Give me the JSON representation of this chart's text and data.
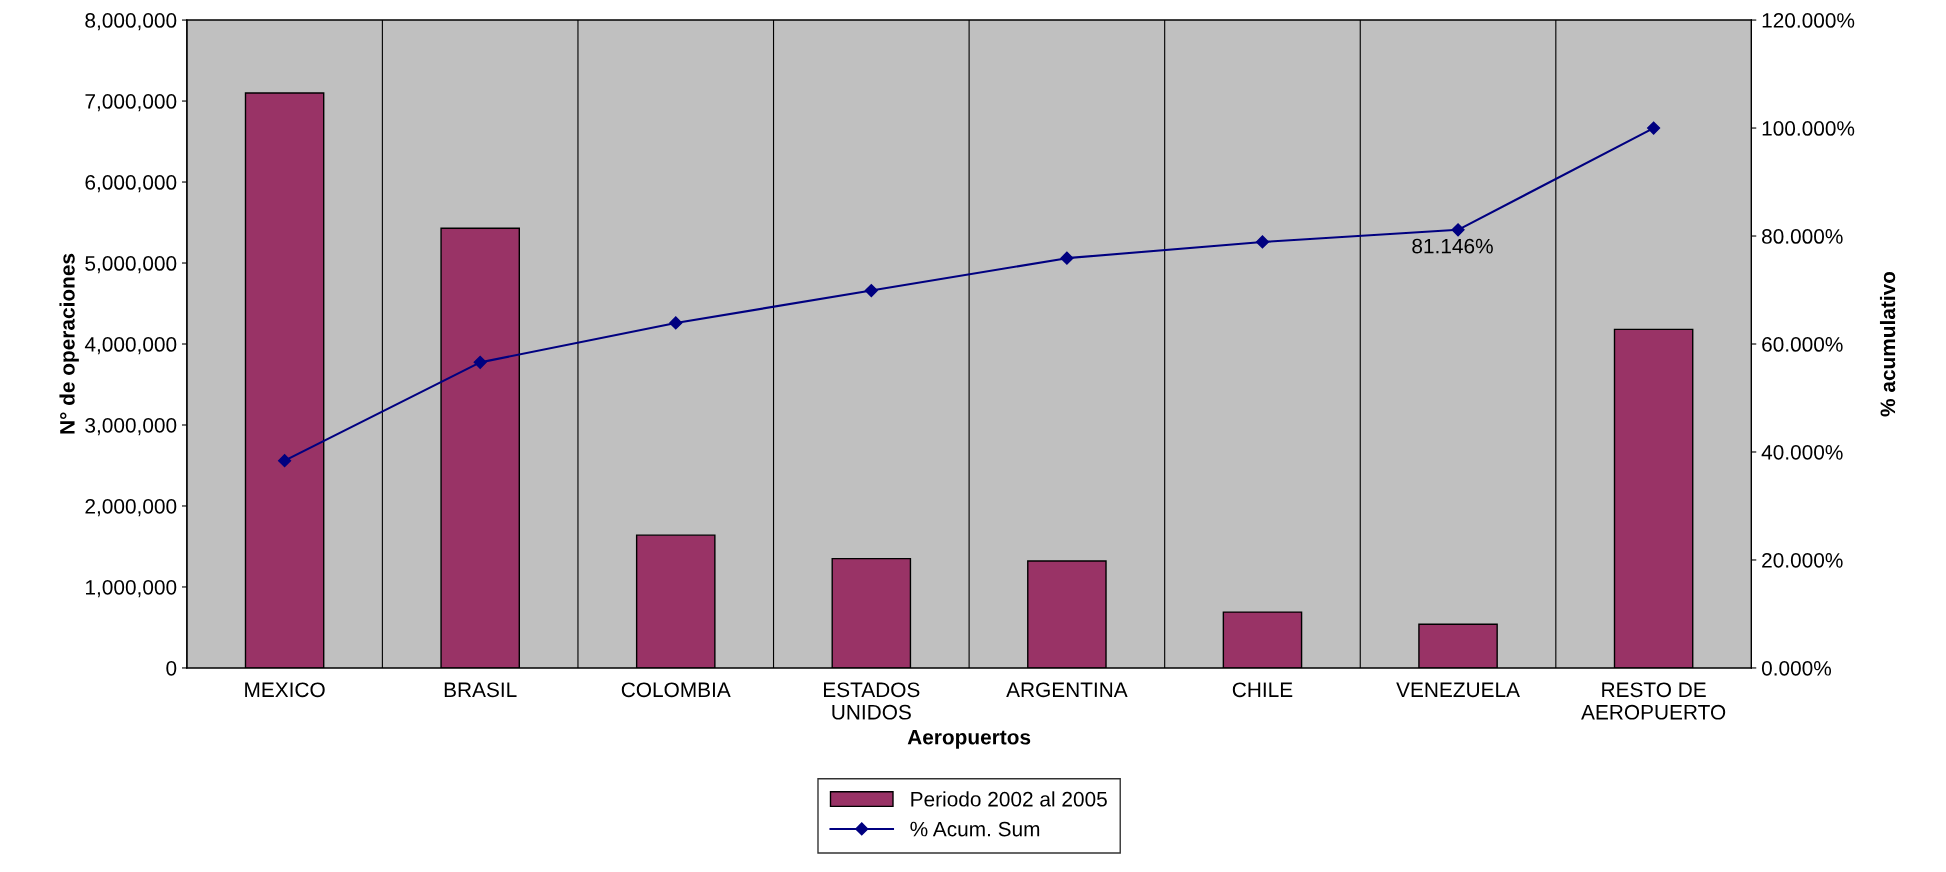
{
  "chart_data": {
    "type": "bar",
    "xlabel": "Aeropuertos",
    "ylabel": "N° de operaciones",
    "y2label": "% acumulativo",
    "categories": [
      "MEXICO",
      "BRASIL",
      "COLOMBIA",
      "ESTADOS\nUNIDOS",
      "ARGENTINA",
      "CHILE",
      "VENEZUELA",
      "RESTO DE\nAEROPUERTO"
    ],
    "series": [
      {
        "name": "Periodo 2002 al 2005",
        "color": "#993366",
        "values": [
          7100000,
          5430000,
          1640000,
          1350000,
          1320000,
          690000,
          540000,
          4180000
        ]
      },
      {
        "name": "% Acum. Sum",
        "type": "line",
        "axis": "y2",
        "color": "#000080",
        "marker": "diamond",
        "line_style": "solid",
        "values": [
          38.4,
          56.6,
          63.9,
          69.9,
          75.9,
          78.9,
          81.146,
          100
        ],
        "value_labels": [
          null,
          null,
          null,
          null,
          null,
          null,
          "81.146%",
          null
        ]
      }
    ],
    "ylim": [
      0,
      8000000
    ],
    "yticks": [
      {
        "value": 0,
        "label": "0"
      },
      {
        "value": 1000000,
        "label": "1,000,000"
      },
      {
        "value": 2000000,
        "label": "2,000,000"
      },
      {
        "value": 3000000,
        "label": "3,000,000"
      },
      {
        "value": 4000000,
        "label": "4,000,000"
      },
      {
        "value": 5000000,
        "label": "5,000,000"
      },
      {
        "value": 6000000,
        "label": "6,000,000"
      },
      {
        "value": 7000000,
        "label": "7,000,000"
      },
      {
        "value": 8000000,
        "label": "8,000,000"
      }
    ],
    "y2lim": [
      0,
      120
    ],
    "y2ticks": [
      {
        "value": 0,
        "label": "0.000%"
      },
      {
        "value": 20,
        "label": "20.000%"
      },
      {
        "value": 40,
        "label": "40.000%"
      },
      {
        "value": 60,
        "label": "60.000%"
      },
      {
        "value": 80,
        "label": "80.000%"
      },
      {
        "value": 100,
        "label": "100.000%"
      },
      {
        "value": 120,
        "label": "120.000%"
      }
    ],
    "grid": "x",
    "legend": "bottom"
  }
}
